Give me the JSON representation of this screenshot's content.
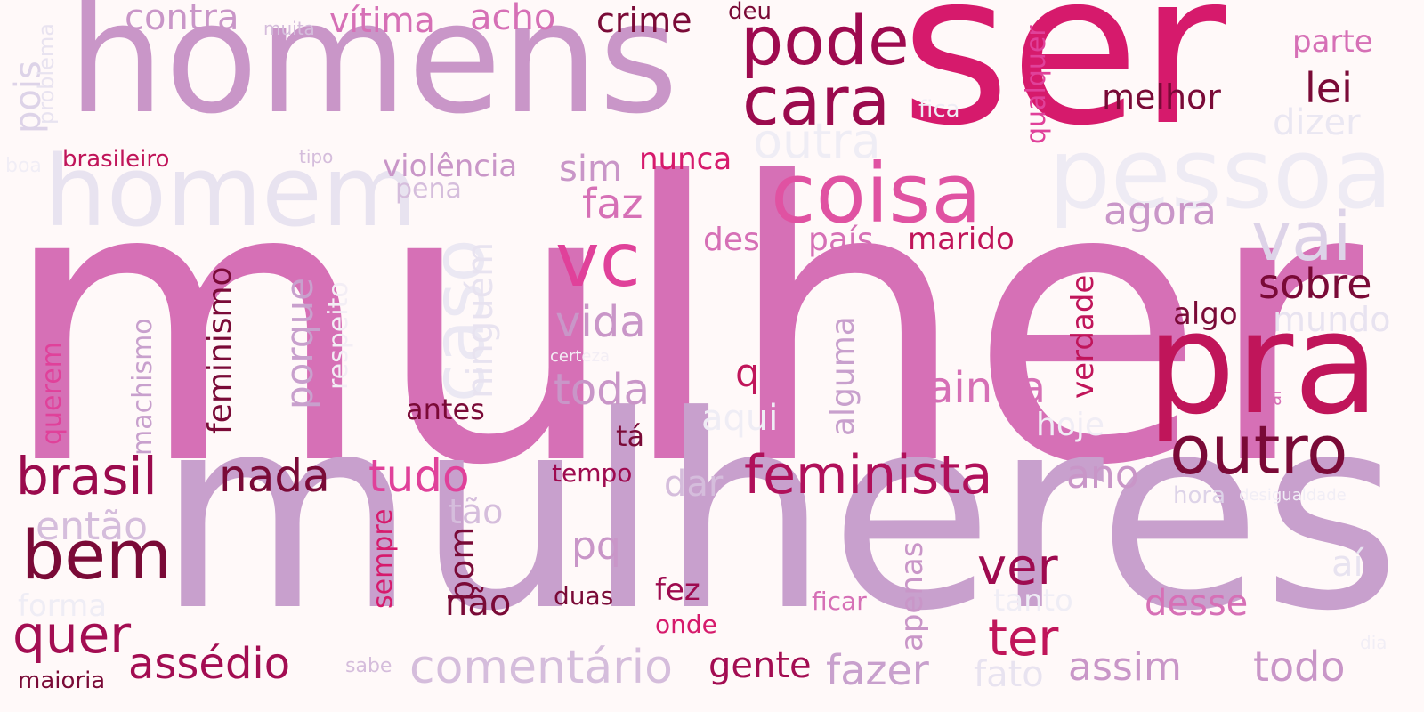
{
  "background": "#fff9f9",
  "words": [
    {
      "text": "mulher",
      "color": "#d670b6",
      "vertical": false
    },
    {
      "text": "mulheres",
      "color": "#c8a0cd",
      "vertical": false
    },
    {
      "text": "ser",
      "color": "#d61a6c",
      "vertical": false
    },
    {
      "text": "homens",
      "color": "#c996c8",
      "vertical": false
    },
    {
      "text": "homem",
      "color": "#e8e3f0",
      "vertical": false
    },
    {
      "text": "pessoa",
      "color": "#eeebf4",
      "vertical": false
    },
    {
      "text": "pra",
      "color": "#c0155a",
      "vertical": false
    },
    {
      "text": "pode",
      "color": "#9e0a4f",
      "vertical": false
    },
    {
      "text": "cara",
      "color": "#9b0a4d",
      "vertical": false
    },
    {
      "text": "coisa",
      "color": "#e052a2",
      "vertical": false
    },
    {
      "text": "vc",
      "color": "#e0419a",
      "vertical": false
    },
    {
      "text": "vai",
      "color": "#ddd3e8",
      "vertical": false
    },
    {
      "text": "outro",
      "color": "#7a0a37",
      "vertical": false
    },
    {
      "text": "caso",
      "color": "#ebe8f3",
      "vertical": true
    },
    {
      "text": "outra",
      "color": "#efedf5",
      "vertical": false
    },
    {
      "text": "bem",
      "color": "#7a0a37",
      "vertical": false
    },
    {
      "text": "brasil",
      "color": "#9b0a4d",
      "vertical": false
    },
    {
      "text": "feminista",
      "color": "#b0105a",
      "vertical": false
    },
    {
      "text": "comentário",
      "color": "#d5bddc",
      "vertical": false
    },
    {
      "text": "quer",
      "color": "#a30d52",
      "vertical": false
    },
    {
      "text": "assédio",
      "color": "#a30d52",
      "vertical": false
    },
    {
      "text": "nada",
      "color": "#7a0a37",
      "vertical": false
    },
    {
      "text": "tudo",
      "color": "#e0419a",
      "vertical": false
    },
    {
      "text": "vida",
      "color": "#c996c8",
      "vertical": false
    },
    {
      "text": "toda",
      "color": "#c996c8",
      "vertical": false
    },
    {
      "text": "ainda",
      "color": "#d670b6",
      "vertical": false
    },
    {
      "text": "sobre",
      "color": "#7a0a37",
      "vertical": false
    },
    {
      "text": "ver",
      "color": "#9e0a4f",
      "vertical": false
    },
    {
      "text": "ter",
      "color": "#c0155a",
      "vertical": false
    },
    {
      "text": "fazer",
      "color": "#c8a0cd",
      "vertical": false
    },
    {
      "text": "assim",
      "color": "#c996c8",
      "vertical": false
    },
    {
      "text": "todo",
      "color": "#c996c8",
      "vertical": false
    },
    {
      "text": "agora",
      "color": "#c996c8",
      "vertical": false
    },
    {
      "text": "faz",
      "color": "#d670b6",
      "vertical": false
    },
    {
      "text": "lei",
      "color": "#7a0a37",
      "vertical": false
    },
    {
      "text": "melhor",
      "color": "#7a0a37",
      "vertical": false
    },
    {
      "text": "contra",
      "color": "#c996c8",
      "vertical": false
    },
    {
      "text": "vítima",
      "color": "#d670b6",
      "vertical": false
    },
    {
      "text": "acho",
      "color": "#d670b6",
      "vertical": false
    },
    {
      "text": "crime",
      "color": "#7a0a37",
      "vertical": false
    },
    {
      "text": "deu",
      "color": "#7a0a37",
      "vertical": false
    },
    {
      "text": "muita",
      "color": "#d5bddc",
      "vertical": false
    },
    {
      "text": "pois",
      "color": "#ddd3e8",
      "vertical": true
    },
    {
      "text": "problema",
      "color": "#e8e3f0",
      "vertical": true
    },
    {
      "text": "qualquer",
      "color": "#e0419a",
      "vertical": true
    },
    {
      "text": "parte",
      "color": "#d670b6",
      "vertical": false
    },
    {
      "text": "dizer",
      "color": "#eae7f2",
      "vertical": false
    },
    {
      "text": "fica",
      "color": "#efedf5",
      "vertical": false
    },
    {
      "text": "brasileiro",
      "color": "#c0155a",
      "vertical": false
    },
    {
      "text": "tipo",
      "color": "#d5bddc",
      "vertical": false
    },
    {
      "text": "boa",
      "color": "#f1eef6",
      "vertical": false
    },
    {
      "text": "violência",
      "color": "#c996c8",
      "vertical": false
    },
    {
      "text": "sim",
      "color": "#c996c8",
      "vertical": false
    },
    {
      "text": "nunca",
      "color": "#d61a6c",
      "vertical": false
    },
    {
      "text": "pena",
      "color": "#d5bddc",
      "vertical": false
    },
    {
      "text": "dessa",
      "color": "#d670b6",
      "vertical": false
    },
    {
      "text": "país",
      "color": "#d670b6",
      "vertical": false
    },
    {
      "text": "marido",
      "color": "#c0155a",
      "vertical": false
    },
    {
      "text": "feminismo",
      "color": "#7a0a37",
      "vertical": true
    },
    {
      "text": "porque",
      "color": "#c8a0cd",
      "vertical": true
    },
    {
      "text": "ninguém",
      "color": "#e8e3f0",
      "vertical": true
    },
    {
      "text": "respeito",
      "color": "#f3eef5",
      "vertical": true
    },
    {
      "text": "machismo",
      "color": "#c8a0cd",
      "vertical": true
    },
    {
      "text": "querem",
      "color": "#e0419a",
      "vertical": true
    },
    {
      "text": "alguma",
      "color": "#c8a0cd",
      "vertical": true
    },
    {
      "text": "verdade",
      "color": "#c0155a",
      "vertical": true
    },
    {
      "text": "algo",
      "color": "#7a0a37",
      "vertical": false
    },
    {
      "text": "mundo",
      "color": "#e8e3f0",
      "vertical": false
    },
    {
      "text": "certeza",
      "color": "#f3eef5",
      "vertical": false
    },
    {
      "text": "q",
      "color": "#c0155a",
      "vertical": false
    },
    {
      "text": "aqui",
      "color": "#efedf5",
      "vertical": false
    },
    {
      "text": "hoje",
      "color": "#f0edf5",
      "vertical": false
    },
    {
      "text": "ai",
      "color": "#d670b6",
      "vertical": true
    },
    {
      "text": "antes",
      "color": "#7a0a37",
      "vertical": false
    },
    {
      "text": "tá",
      "color": "#7a0a37",
      "vertical": false
    },
    {
      "text": "tempo",
      "color": "#9e0a4f",
      "vertical": false
    },
    {
      "text": "dar",
      "color": "#d5bddc",
      "vertical": false
    },
    {
      "text": "ano",
      "color": "#c996c8",
      "vertical": false
    },
    {
      "text": "hora",
      "color": "#ddd3e8",
      "vertical": false
    },
    {
      "text": "desigualdade",
      "color": "#f1eef6",
      "vertical": false
    },
    {
      "text": "então",
      "color": "#d5bddc",
      "vertical": false
    },
    {
      "text": "tão",
      "color": "#d5bddc",
      "vertical": false
    },
    {
      "text": "pq",
      "color": "#c996c8",
      "vertical": false
    },
    {
      "text": "bom",
      "color": "#7a0a37",
      "vertical": true
    },
    {
      "text": "sempre",
      "color": "#d61a6c",
      "vertical": true
    },
    {
      "text": "não",
      "color": "#7a0a37",
      "vertical": false
    },
    {
      "text": "duas",
      "color": "#7a0a37",
      "vertical": false
    },
    {
      "text": "fez",
      "color": "#9e0a4f",
      "vertical": false
    },
    {
      "text": "onde",
      "color": "#d61a6c",
      "vertical": false
    },
    {
      "text": "ficar",
      "color": "#d670b6",
      "vertical": false
    },
    {
      "text": "apenas",
      "color": "#c996c8",
      "vertical": true
    },
    {
      "text": "tanto",
      "color": "#efedf5",
      "vertical": false
    },
    {
      "text": "desse",
      "color": "#d670b6",
      "vertical": false
    },
    {
      "text": "aí",
      "color": "#e8e3f0",
      "vertical": false
    },
    {
      "text": "dia",
      "color": "#f1eef6",
      "vertical": false
    },
    {
      "text": "forma",
      "color": "#efedf5",
      "vertical": false
    },
    {
      "text": "maioria",
      "color": "#7a0a37",
      "vertical": false
    },
    {
      "text": "sabe",
      "color": "#d5bddc",
      "vertical": false
    },
    {
      "text": "gente",
      "color": "#a30d52",
      "vertical": false
    },
    {
      "text": "fato",
      "color": "#e8e3f0",
      "vertical": false
    }
  ]
}
